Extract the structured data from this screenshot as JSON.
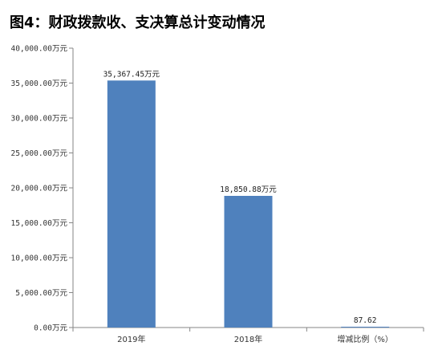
{
  "chart_data": {
    "type": "bar",
    "title": "图4：财政拨款收、支决算总计变动情况",
    "categories": [
      "2019年",
      "2018年",
      "增减比例（%）"
    ],
    "values": [
      35367.45,
      18850.88,
      87.62
    ],
    "data_labels": [
      "35,367.45万元",
      "18,850.88万元",
      "87.62"
    ],
    "ylim": [
      0,
      40000
    ],
    "y_ticks": [
      0,
      5000,
      10000,
      15000,
      20000,
      25000,
      30000,
      35000,
      40000
    ],
    "y_tick_labels": [
      "0.00万元",
      "5,000.00万元",
      "10,000.00万元",
      "15,000.00万元",
      "20,000.00万元",
      "25,000.00万元",
      "30,000.00万元",
      "35,000.00万元",
      "40,000.00万元"
    ],
    "xlabel": "",
    "ylabel": "",
    "grid": false,
    "bar_color": "#4f81bd",
    "axis_color": "#868686"
  }
}
